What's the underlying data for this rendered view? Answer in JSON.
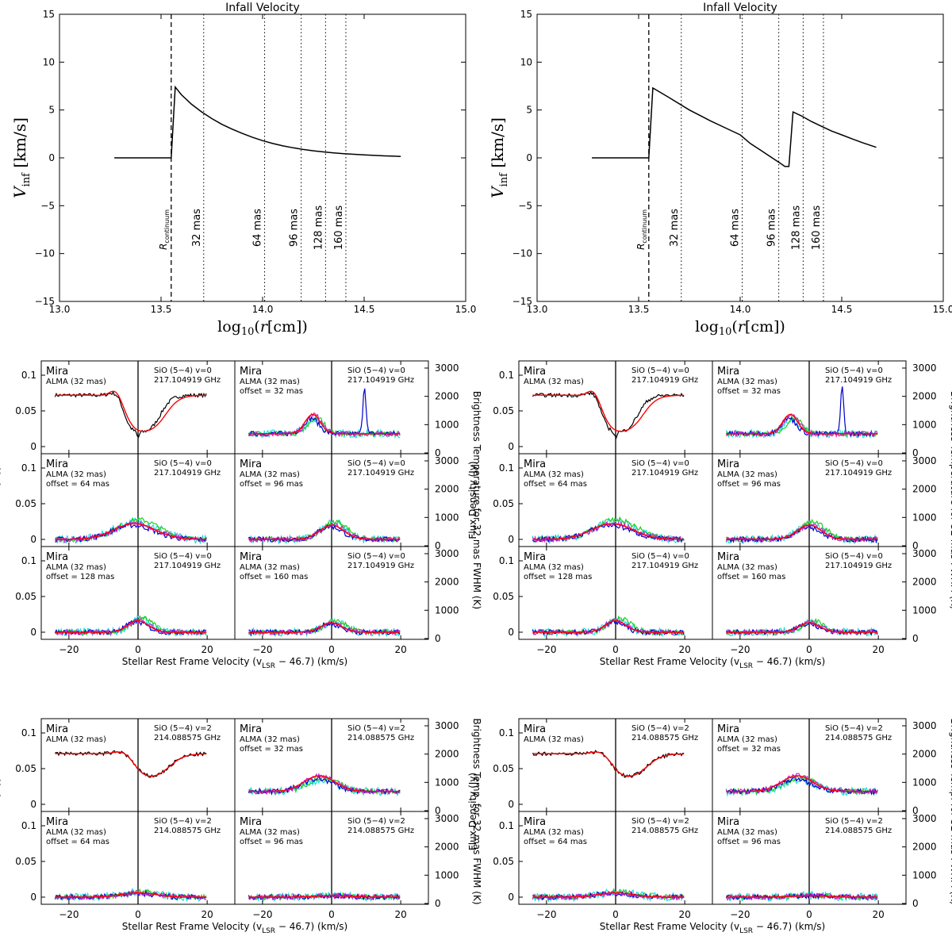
{
  "chart_data": [
    {
      "type": "line",
      "panel": "top-left",
      "title": "Infall Velocity",
      "xlabel": "log10(r[cm])",
      "ylabel": "V_inf [km/s]",
      "xlim": [
        13.0,
        15.0
      ],
      "ylim": [
        -15,
        15
      ],
      "xticks": [
        "13.0",
        "13.5",
        "14.0",
        "14.5",
        "15.0"
      ],
      "yticks": [
        "-15",
        "-10",
        "-5",
        "0",
        "5",
        "10",
        "15"
      ],
      "curve": {
        "x": [
          13.27,
          13.55,
          13.57,
          13.6,
          13.65,
          13.7,
          13.75,
          13.8,
          13.85,
          13.9,
          13.95,
          14.0,
          14.05,
          14.1,
          14.15,
          14.2,
          14.25,
          14.3,
          14.35,
          14.4,
          14.45,
          14.5,
          14.55,
          14.6,
          14.65,
          14.68
        ],
        "y": [
          0,
          0,
          7.4,
          6.6,
          5.6,
          4.8,
          4.1,
          3.5,
          3.0,
          2.55,
          2.15,
          1.8,
          1.5,
          1.25,
          1.05,
          0.88,
          0.74,
          0.62,
          0.52,
          0.44,
          0.37,
          0.31,
          0.26,
          0.21,
          0.17,
          0.15
        ]
      },
      "continuum_line": {
        "x": 13.55,
        "label": "R_continuum"
      },
      "offset_lines": [
        {
          "x": 13.71,
          "label": "32 mas"
        },
        {
          "x": 14.01,
          "label": "64 mas"
        },
        {
          "x": 14.19,
          "label": "96 mas"
        },
        {
          "x": 14.31,
          "label": "128 mas"
        },
        {
          "x": 14.41,
          "label": "160 mas"
        }
      ]
    },
    {
      "type": "line",
      "panel": "top-right",
      "title": "Infall Velocity",
      "xlabel": "log10(r[cm])",
      "ylabel": "V_inf [km/s]",
      "xlim": [
        13.0,
        15.0
      ],
      "ylim": [
        -15,
        15
      ],
      "xticks": [
        "13.0",
        "13.5",
        "14.0",
        "14.5",
        "15.0"
      ],
      "yticks": [
        "-15",
        "-10",
        "-5",
        "0",
        "5",
        "10",
        "15"
      ],
      "curve": {
        "x": [
          13.27,
          13.55,
          13.57,
          13.65,
          13.75,
          13.85,
          13.95,
          14.0,
          14.05,
          14.1,
          14.15,
          14.2,
          14.22,
          14.24,
          14.26,
          14.3,
          14.35,
          14.4,
          14.45,
          14.5,
          14.55,
          14.6,
          14.67
        ],
        "y": [
          0,
          0,
          7.3,
          6.3,
          5.0,
          3.9,
          2.9,
          2.4,
          1.5,
          0.8,
          0.1,
          -0.6,
          -0.9,
          -0.9,
          4.8,
          4.4,
          3.8,
          3.3,
          2.8,
          2.4,
          2.0,
          1.6,
          1.1
        ]
      },
      "continuum_line": {
        "x": 13.55,
        "label": "R_continuum"
      },
      "offset_lines": [
        {
          "x": 13.71,
          "label": "32 mas"
        },
        {
          "x": 14.01,
          "label": "64 mas"
        },
        {
          "x": 14.19,
          "label": "96 mas"
        },
        {
          "x": 14.31,
          "label": "128 mas"
        },
        {
          "x": 14.41,
          "label": "160 mas"
        }
      ]
    }
  ],
  "spectra": {
    "xlabel": "Stellar Rest Frame Velocity (v",
    "xlabel_sub": "LSR",
    "xlabel_tail": " − 46.7) (km/s)",
    "ylabel_left": "Flux Density (Jy)",
    "ylabel_right_v0": "Brightness Temperature for 32 mas FWHM (K)",
    "ylabel_right_v2": "Brightness Temp. for 32 mas FWHM (K)",
    "xticks": [
      "−20",
      "0",
      "20"
    ],
    "xtick_values": [
      -20,
      0,
      20
    ],
    "xlim": [
      -28,
      28
    ],
    "ylim": [
      -0.01,
      0.12
    ],
    "yticks": [
      "0",
      "0.05",
      "0.1"
    ],
    "ytick_values": [
      0,
      0.05,
      0.1
    ],
    "rticks": [
      "0",
      "1000",
      "2000",
      "3000"
    ],
    "rtick_values": [
      0,
      1000,
      2000,
      3000
    ],
    "colors": {
      "observed": "#000000",
      "model": "#ff0000",
      "blue": "#0000cc",
      "green": "#22cc22",
      "cyan": "#22dddd",
      "magenta": "#cc22cc"
    },
    "source": "Mira",
    "instrument": "ALMA (32 mas)",
    "line_v0": "SiO (5−4) v=0",
    "freq_v0": "217.104919 GHz",
    "line_v2": "SiO (5−4) v=2",
    "freq_v2": "214.088575 GHz",
    "offsets": [
      "",
      "offset = 32 mas",
      "offset = 64 mas",
      "offset = 96 mas",
      "offset = 128 mas",
      "offset = 160 mas"
    ],
    "peak_estimates_jy": {
      "v0_center_continuum": 0.072,
      "v0_center_min": 0.018,
      "v0_32_baseline": 0.018,
      "v0_32_peak": 0.045,
      "v0_32_maser": 0.085,
      "v0_64_peak": 0.022,
      "v0_96_peak": 0.02,
      "v0_128_peak": 0.015,
      "v0_160_peak": 0.013,
      "v2_center_continuum": 0.07,
      "v2_center_min": 0.034,
      "v2_32_baseline": 0.018,
      "v2_32_peak": 0.04,
      "v2_64_peak": 0.01,
      "v2_96_peak": 0.003
    }
  }
}
